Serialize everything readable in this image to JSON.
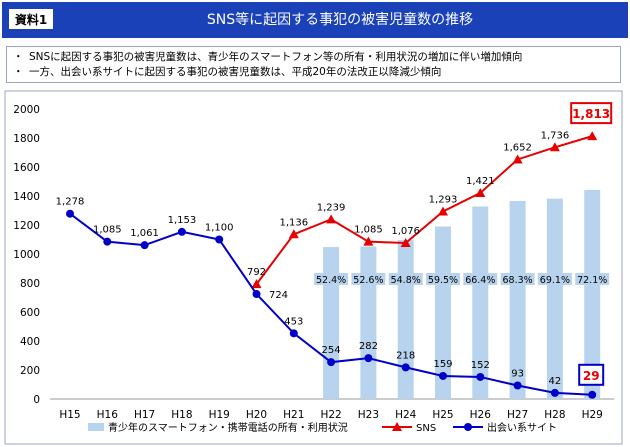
{
  "header": {
    "badge": "資料1",
    "title": "SNS等に起因する事犯の被害児童数の推移",
    "accent_color": "#1a41b8"
  },
  "bullets": [
    "SNSに起因する事犯の被害児童数は、青少年のスマートフォン等の所有・利用状況の増加に伴い増加傾向",
    "一方、出会い系サイトに起因する事犯の被害児童数は、平成20年の法改正以降減少傾向"
  ],
  "bullet_marker": "・",
  "chart_data": {
    "type": "line",
    "categories": [
      "H15",
      "H16",
      "H17",
      "H18",
      "H19",
      "H20",
      "H21",
      "H22",
      "H23",
      "H24",
      "H25",
      "H26",
      "H27",
      "H28",
      "H29"
    ],
    "ylim": [
      0,
      2000
    ],
    "yticks": [
      0,
      200,
      400,
      600,
      800,
      1000,
      1200,
      1400,
      1600,
      1800,
      2000
    ],
    "grid": false,
    "legend_position": "bottom",
    "bars": {
      "name": "青少年のスマートフォン・携帯電話の所有・利用状況",
      "color": "#b8d3ee",
      "values": [
        null,
        null,
        null,
        null,
        null,
        null,
        null,
        52.4,
        52.6,
        54.8,
        59.5,
        66.4,
        68.3,
        69.1,
        72.1
      ],
      "labels": [
        "",
        "",
        "",
        "",
        "",
        "",
        "",
        "52.4%",
        "52.6%",
        "54.8%",
        "59.5%",
        "66.4%",
        "68.3%",
        "69.1%",
        "72.1%"
      ]
    },
    "series": [
      {
        "name": "SNS",
        "color": "#e60000",
        "marker": "triangle",
        "values": [
          null,
          null,
          null,
          null,
          null,
          792,
          1136,
          1239,
          1085,
          1076,
          1293,
          1421,
          1652,
          1736,
          1813
        ],
        "labels": [
          "",
          "",
          "",
          "",
          "",
          "792",
          "1,136",
          "1,239",
          "1,085",
          "1,076",
          "1,293",
          "1,421",
          "1,652",
          "1,736",
          "1,813"
        ]
      },
      {
        "name": "出会い系サイト",
        "color": "#0000c8",
        "marker": "circle",
        "values": [
          1278,
          1085,
          1061,
          1153,
          1100,
          724,
          453,
          254,
          282,
          218,
          159,
          152,
          93,
          42,
          29
        ],
        "labels": [
          "1,278",
          "1,085",
          "1,061",
          "1,153",
          "1,100",
          "724",
          "453",
          "254",
          "282",
          "218",
          "159",
          "152",
          "93",
          "42",
          "29"
        ]
      }
    ]
  }
}
